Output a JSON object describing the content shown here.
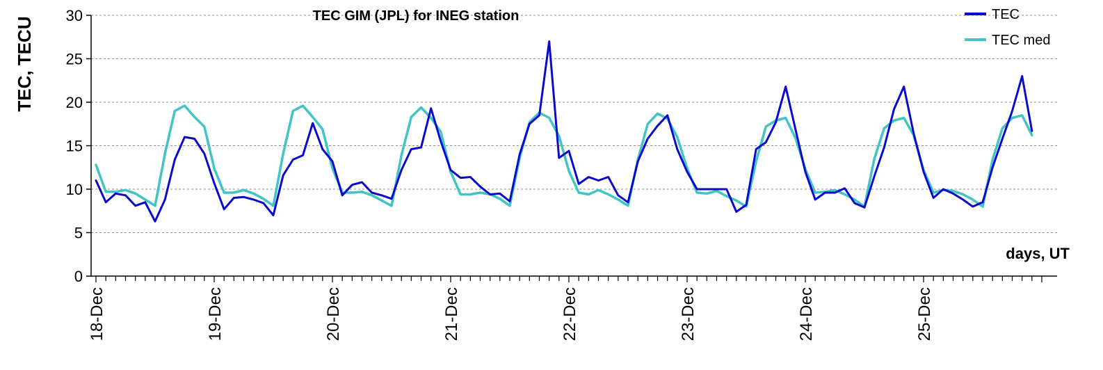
{
  "chart_data": {
    "type": "line",
    "title": "TEC GIM (JPL) for INEG station",
    "ylabel": "TEC, TECU",
    "xlabel": "days, UT",
    "ylim": [
      0,
      30
    ],
    "yticks": [
      0,
      5,
      10,
      15,
      20,
      25,
      30
    ],
    "grid": true,
    "legend_position": "top-right",
    "points_per_day": 12,
    "day_labels": [
      "18-Dec",
      "19-Dec",
      "20-Dec",
      "21-Dec",
      "22-Dec",
      "23-Dec",
      "24-Dec",
      "25-Dec"
    ],
    "series": [
      {
        "name": "TEC",
        "color": "#0a0acd",
        "values": [
          11.0,
          8.5,
          9.5,
          9.3,
          8.1,
          8.5,
          6.3,
          8.8,
          13.4,
          16.0,
          15.8,
          14.1,
          10.7,
          7.7,
          9.0,
          9.1,
          8.8,
          8.4,
          7.0,
          11.6,
          13.4,
          13.9,
          17.6,
          14.6,
          13.2,
          9.3,
          10.5,
          10.8,
          9.6,
          9.3,
          8.9,
          12.2,
          14.6,
          14.8,
          19.3,
          15.5,
          12.2,
          11.3,
          11.4,
          10.3,
          9.4,
          9.5,
          8.6,
          14.0,
          17.5,
          18.5,
          27.0,
          13.6,
          14.4,
          10.6,
          11.4,
          11.0,
          11.4,
          9.3,
          8.5,
          13.2,
          15.8,
          17.3,
          18.5,
          14.6,
          12.0,
          10.0,
          10.0,
          10.0,
          10.0,
          7.4,
          8.2,
          14.6,
          15.4,
          17.7,
          21.8,
          16.9,
          12.0,
          8.8,
          9.6,
          9.6,
          10.1,
          8.4,
          7.9,
          11.5,
          14.8,
          19.2,
          21.8,
          16.4,
          12.0,
          9.0,
          10.0,
          9.5,
          8.8,
          8.0,
          8.5,
          12.5,
          15.8,
          19.0,
          23.0,
          16.7
        ]
      },
      {
        "name": "TEC med",
        "color": "#40c4c4",
        "values": [
          12.8,
          9.7,
          9.7,
          9.9,
          9.5,
          8.8,
          8.1,
          14.1,
          19.0,
          19.6,
          18.3,
          17.2,
          12.4,
          9.6,
          9.6,
          9.9,
          9.5,
          8.9,
          8.1,
          14.1,
          19.0,
          19.6,
          18.3,
          16.9,
          12.4,
          9.6,
          9.6,
          9.7,
          9.3,
          8.7,
          8.1,
          13.9,
          18.3,
          19.4,
          18.2,
          16.6,
          12.0,
          9.4,
          9.4,
          9.6,
          9.4,
          8.9,
          8.1,
          13.6,
          17.7,
          18.8,
          18.2,
          16.1,
          12.1,
          9.6,
          9.4,
          9.9,
          9.4,
          8.8,
          8.1,
          13.4,
          17.5,
          18.7,
          18.1,
          16.0,
          12.4,
          9.6,
          9.5,
          9.8,
          9.2,
          8.7,
          8.0,
          13.2,
          17.2,
          17.9,
          18.2,
          15.9,
          12.3,
          9.6,
          9.7,
          9.9,
          9.4,
          8.8,
          8.0,
          13.5,
          17.0,
          17.9,
          18.2,
          16.2,
          12.2,
          9.6,
          9.9,
          9.8,
          9.4,
          8.8,
          8.0,
          13.4,
          17.0,
          18.2,
          18.5,
          16.2
        ]
      }
    ]
  }
}
